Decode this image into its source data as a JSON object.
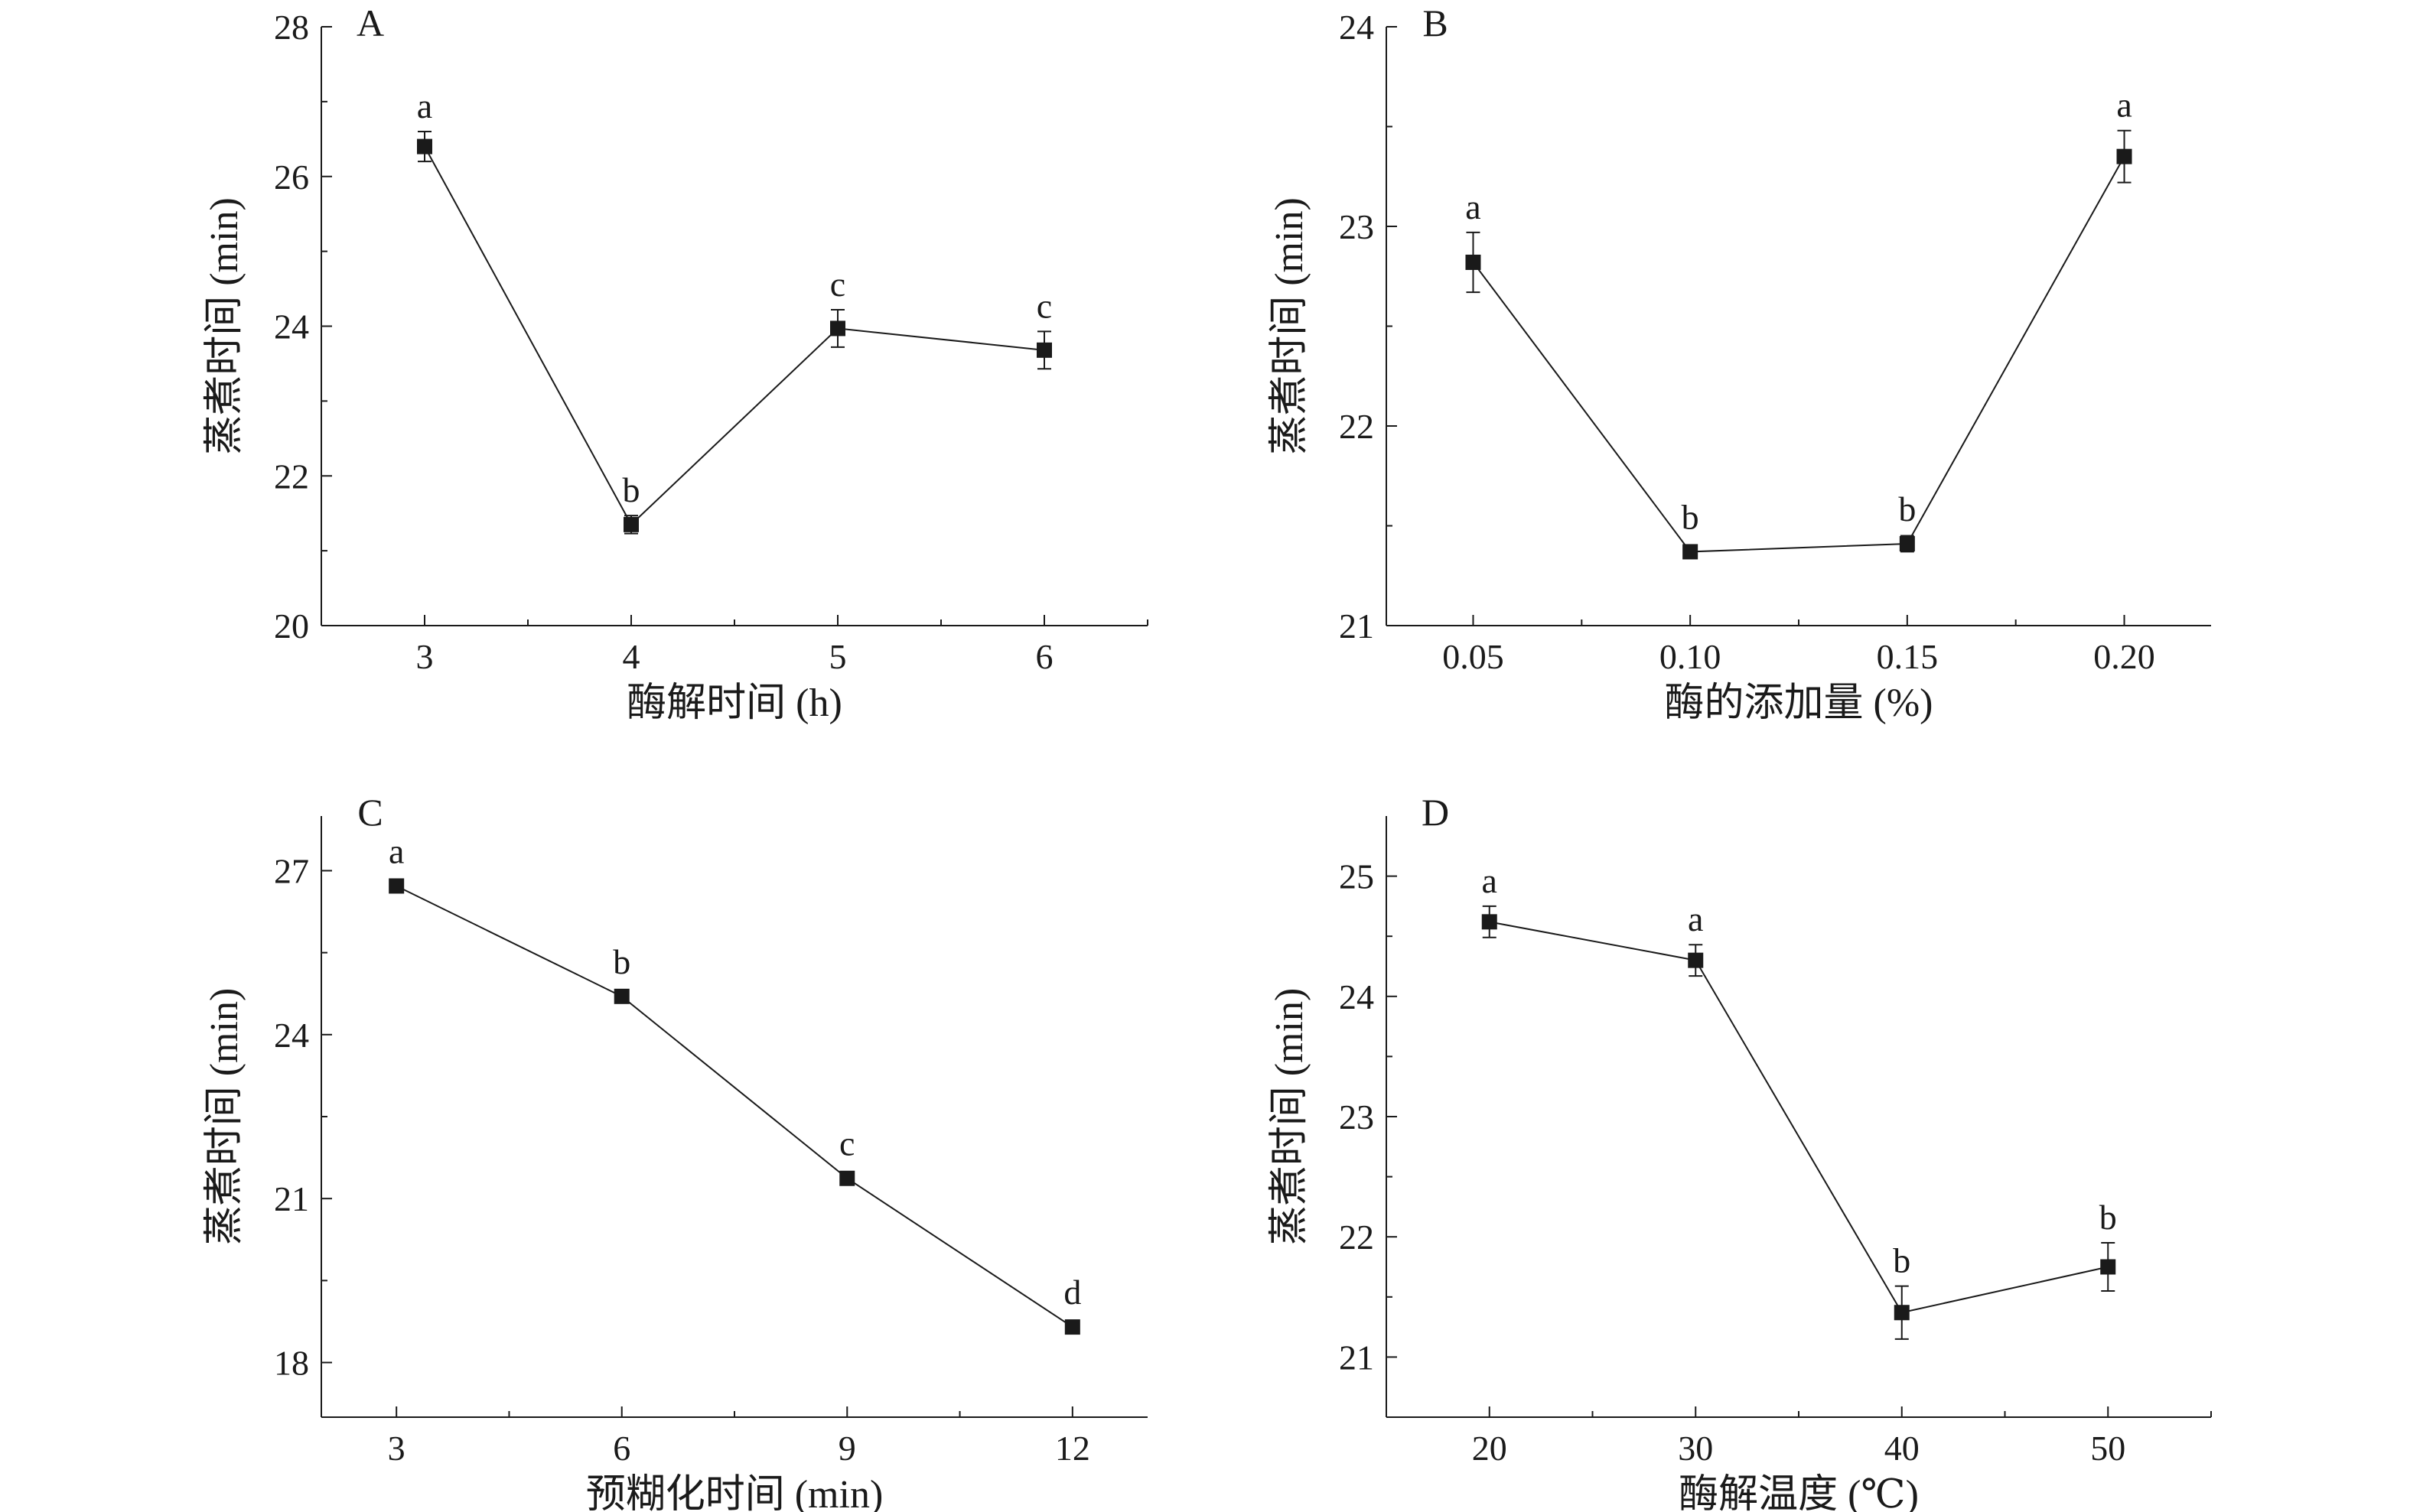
{
  "chart_data": [
    {
      "type": "line",
      "panel_label": "A",
      "xlabel": "酶解时间 (h)",
      "ylabel": "蒸煮时间 (min)",
      "x": [
        3,
        4,
        5,
        6
      ],
      "x_tick_labels": [
        "3",
        "4",
        "5",
        "6"
      ],
      "xlim": [
        2.5,
        6.5
      ],
      "ylim": [
        20,
        28
      ],
      "y_ticks": [
        20,
        22,
        24,
        26,
        28
      ],
      "y_tick_labels": [
        "20",
        "22",
        "24",
        "26",
        "28"
      ],
      "series": [
        {
          "values": [
            26.4,
            21.35,
            23.97,
            23.68
          ],
          "errors": [
            0.2,
            0.12,
            0.25,
            0.25
          ],
          "letters": [
            "a",
            "b",
            "c",
            "c"
          ]
        }
      ]
    },
    {
      "type": "line",
      "panel_label": "B",
      "xlabel": "酶的添加量 (%)",
      "ylabel": "蒸煮时间 (min)",
      "x": [
        0.05,
        0.1,
        0.15,
        0.2
      ],
      "x_tick_labels": [
        "0.05",
        "0.10",
        "0.15",
        "0.20"
      ],
      "xlim": [
        0.03,
        0.22
      ],
      "ylim": [
        21,
        24
      ],
      "y_ticks": [
        21,
        22,
        23,
        24
      ],
      "y_tick_labels": [
        "21",
        "22",
        "23",
        "24"
      ],
      "series": [
        {
          "values": [
            22.82,
            21.37,
            21.41,
            23.35
          ],
          "errors": [
            0.15,
            0.02,
            0.04,
            0.13
          ],
          "letters": [
            "a",
            "b",
            "b",
            "a"
          ]
        }
      ]
    },
    {
      "type": "line",
      "panel_label": "C",
      "xlabel": "预糊化时间 (min)",
      "ylabel": "蒸煮时间 (min)",
      "x": [
        3,
        6,
        9,
        12
      ],
      "x_tick_labels": [
        "3",
        "6",
        "9",
        "12"
      ],
      "xlim": [
        2,
        13
      ],
      "ylim": [
        17,
        28
      ],
      "y_ticks": [
        18,
        21,
        24,
        27
      ],
      "y_tick_labels": [
        "18",
        "21",
        "24",
        "27"
      ],
      "series": [
        {
          "values": [
            26.72,
            24.7,
            21.37,
            18.65
          ],
          "errors": [
            0.1,
            0.07,
            0.07,
            0.05
          ],
          "letters": [
            "a",
            "b",
            "c",
            "d"
          ]
        }
      ]
    },
    {
      "type": "line",
      "panel_label": "D",
      "xlabel": "酶解温度 (℃)",
      "ylabel": "蒸煮时间 (min)",
      "x": [
        20,
        30,
        40,
        50
      ],
      "x_tick_labels": [
        "20",
        "30",
        "40",
        "50"
      ],
      "xlim": [
        15,
        55
      ],
      "ylim": [
        20.5,
        25.5
      ],
      "y_ticks": [
        21,
        22,
        23,
        24,
        25
      ],
      "y_tick_labels": [
        "21",
        "22",
        "23",
        "24",
        "25"
      ],
      "series": [
        {
          "values": [
            24.62,
            24.3,
            21.37,
            21.75
          ],
          "errors": [
            0.13,
            0.13,
            0.22,
            0.2
          ],
          "letters": [
            "a",
            "a",
            "b",
            "b"
          ]
        }
      ]
    }
  ]
}
